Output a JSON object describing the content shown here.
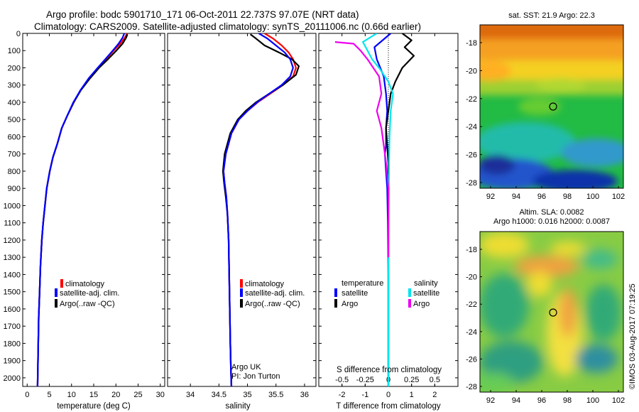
{
  "header": {
    "line1": "Argo profile: bodc 5901710_171 06-Oct-2011 22.737S 97.07E (NRT data)",
    "line2": "Climatology: CARS2009. Satellite-adjusted climatology: synTS_20111006.nc (0.66d earlier)"
  },
  "colors": {
    "climatology": "#ff0000",
    "satellite_adj": "#0000ff",
    "argo": "#000000",
    "salinity_satellite": "#00e5ee",
    "salinity_argo": "#ee00ee"
  },
  "chart_data": [
    {
      "id": "temperature",
      "type": "line",
      "xlabel": "temperature (deg C)",
      "xlim": [
        -1,
        31
      ],
      "xticks": [
        0,
        5,
        10,
        15,
        20,
        25,
        30
      ],
      "ylim": [
        2050,
        0
      ],
      "yticks": [
        0,
        100,
        200,
        300,
        400,
        500,
        600,
        700,
        800,
        900,
        1000,
        1100,
        1200,
        1300,
        1400,
        1500,
        1600,
        1700,
        1800,
        1900,
        2000
      ],
      "legend": [
        "climatology",
        "satellite-adj. clim.",
        "Argo(..raw -QC)"
      ],
      "series": [
        {
          "name": "climatology",
          "color": "#ff0000",
          "x": [
            22.5,
            22.0,
            21.0,
            19.5,
            17.8,
            16.0,
            14.0,
            12.0,
            10.5,
            9.0,
            7.8,
            6.8,
            5.8,
            5.1,
            4.4,
            4.0,
            3.6,
            3.3,
            3.0,
            2.8,
            2.6,
            2.5,
            2.4,
            2.35
          ],
          "y": [
            0,
            25,
            60,
            100,
            150,
            200,
            260,
            330,
            400,
            480,
            550,
            640,
            720,
            800,
            900,
            1000,
            1100,
            1200,
            1350,
            1500,
            1650,
            1800,
            1950,
            2050
          ]
        },
        {
          "name": "Argo(..raw -QC)",
          "color": "#000000",
          "x": [
            22.6,
            22.3,
            21.5,
            20.1,
            18.2,
            16.2,
            14.2,
            12.1,
            10.5,
            9.0,
            7.8,
            6.8,
            5.8,
            5.1,
            4.4,
            4.0,
            3.6,
            3.3,
            3.0,
            2.8,
            2.6,
            2.5,
            2.4,
            2.35
          ],
          "y": [
            5,
            25,
            60,
            100,
            150,
            200,
            260,
            330,
            400,
            480,
            550,
            640,
            720,
            800,
            900,
            1000,
            1100,
            1200,
            1350,
            1500,
            1650,
            1800,
            1950,
            2050
          ]
        },
        {
          "name": "satellite-adj. clim.",
          "color": "#0000ff",
          "x": [
            21.9,
            21.5,
            20.6,
            19.3,
            17.6,
            15.9,
            13.9,
            12.0,
            10.4,
            9.0,
            7.8,
            6.8,
            5.8,
            5.1,
            4.4,
            4.0,
            3.6,
            3.3,
            3.0,
            2.8,
            2.6,
            2.5,
            2.4,
            2.35
          ],
          "y": [
            0,
            25,
            60,
            100,
            150,
            200,
            260,
            330,
            400,
            480,
            550,
            640,
            720,
            800,
            900,
            1000,
            1100,
            1200,
            1350,
            1500,
            1650,
            1800,
            1950,
            2050
          ]
        }
      ]
    },
    {
      "id": "salinity",
      "type": "line",
      "xlabel": "salinity",
      "xlim": [
        33.6,
        36.2
      ],
      "xticks": [
        34,
        34.5,
        35,
        35.5,
        36
      ],
      "xticklabels": [
        "34",
        "34.5",
        "35",
        "35.5",
        "36"
      ],
      "ylim": [
        2050,
        0
      ],
      "legend": [
        "climatology",
        "satellite-adj. clim.",
        "Argo(..raw -QC)"
      ],
      "annotation": [
        "Argo UK",
        "PI: Jon Turton"
      ],
      "series": [
        {
          "name": "climatology",
          "color": "#ff0000",
          "x": [
            35.3,
            35.45,
            35.6,
            35.72,
            35.8,
            35.85,
            35.8,
            35.62,
            35.4,
            35.18,
            35.0,
            34.85,
            34.72,
            34.62,
            34.58,
            34.6,
            34.63,
            34.65,
            34.67,
            34.68,
            34.69,
            34.7,
            34.71,
            34.72
          ],
          "y": [
            0,
            30,
            70,
            110,
            150,
            200,
            250,
            300,
            350,
            400,
            450,
            500,
            580,
            700,
            800,
            870,
            950,
            1050,
            1200,
            1400,
            1600,
            1800,
            1950,
            2050
          ]
        },
        {
          "name": "Argo(..raw -QC)",
          "color": "#000000",
          "x": [
            35.05,
            35.15,
            35.3,
            35.55,
            35.78,
            35.9,
            35.85,
            35.62,
            35.38,
            35.15,
            34.97,
            34.83,
            34.7,
            34.6,
            34.57,
            34.59,
            34.62,
            34.65,
            34.67,
            34.68,
            34.69,
            34.7,
            34.71,
            34.72
          ],
          "y": [
            5,
            30,
            70,
            110,
            150,
            190,
            240,
            300,
            350,
            400,
            450,
            500,
            580,
            700,
            800,
            870,
            950,
            1050,
            1200,
            1400,
            1600,
            1800,
            1950,
            2050
          ]
        },
        {
          "name": "satellite-adj. clim.",
          "color": "#0000ff",
          "x": [
            35.2,
            35.35,
            35.5,
            35.65,
            35.75,
            35.8,
            35.75,
            35.6,
            35.38,
            35.17,
            35.0,
            34.85,
            34.72,
            34.62,
            34.58,
            34.6,
            34.63,
            34.65,
            34.67,
            34.68,
            34.69,
            34.7,
            34.71,
            34.72
          ],
          "y": [
            0,
            30,
            70,
            110,
            150,
            200,
            250,
            300,
            350,
            400,
            450,
            500,
            580,
            700,
            800,
            870,
            950,
            1050,
            1200,
            1400,
            1600,
            1800,
            1950,
            2050
          ]
        }
      ]
    },
    {
      "id": "difference",
      "type": "line",
      "xlabel": "T difference from climatology",
      "xlabel_top": "S difference from climatology",
      "xlim": [
        -3,
        3
      ],
      "xticks": [
        -2,
        -1,
        0,
        1,
        2
      ],
      "top_xlim": [
        -0.75,
        0.75
      ],
      "top_xticks": [
        -0.5,
        -0.25,
        0,
        0.25,
        0.5
      ],
      "top_xticklabels": [
        "-0.5",
        "-0.25",
        "0",
        "0.25",
        "0.5"
      ],
      "ylim": [
        2050,
        0
      ],
      "legend_title_t": "temperature",
      "legend_title_s": "salinity",
      "legend_t": [
        "satellite",
        "Argo"
      ],
      "legend_s": [
        "satellite",
        "Argo"
      ],
      "series": [
        {
          "name": "temperature satellite",
          "color": "#0000ff",
          "x": [
            0.1,
            -0.6,
            -0.5,
            -0.2,
            -0.1,
            -0.05,
            -0.1,
            -0.1,
            -0.15,
            -0.1,
            -0.05,
            -0.02,
            0,
            0,
            0
          ],
          "y": [
            0,
            80,
            150,
            250,
            350,
            450,
            550,
            650,
            700,
            800,
            900,
            1100,
            1400,
            1700,
            2050
          ]
        },
        {
          "name": "temperature Argo",
          "color": "#000000",
          "x": [
            0.6,
            1.0,
            0.7,
            1.1,
            0.6,
            0.3,
            0.1,
            0,
            -0.1,
            -0.05,
            0,
            0,
            0,
            0,
            0
          ],
          "y": [
            0,
            40,
            80,
            130,
            200,
            280,
            350,
            450,
            550,
            650,
            750,
            900,
            1200,
            1600,
            2050
          ]
        },
        {
          "name": "salinity satellite",
          "color": "#00e5ee",
          "x": [
            -0.5,
            -1.1,
            -0.9,
            -0.7,
            -0.4,
            0,
            0.2,
            0.1,
            0.05,
            0.03,
            0.02,
            0.01,
            0,
            0,
            0
          ],
          "y": [
            0,
            50,
            100,
            150,
            200,
            280,
            350,
            450,
            600,
            750,
            900,
            1100,
            1400,
            1700,
            2050
          ]
        },
        {
          "name": "salinity Argo",
          "color": "#ee00ee",
          "x": [
            -2.3,
            -1.5,
            -1.2,
            -0.9,
            -0.4,
            -0.3,
            -0.5,
            -0.3,
            -0.2,
            -0.1,
            0,
            0,
            0
          ],
          "y": [
            50,
            60,
            100,
            150,
            250,
            350,
            450,
            550,
            650,
            750,
            900,
            1100,
            1300
          ]
        }
      ]
    }
  ],
  "maps": {
    "sst": {
      "title": "sat. SST: 21.9 Argo: 22.3",
      "xticks": [
        "92",
        "94",
        "96",
        "98",
        "100",
        "102"
      ],
      "yticks": [
        "-18",
        "-20",
        "-22",
        "-24",
        "-26",
        "-28"
      ]
    },
    "sla": {
      "title_line1": "Altim. SLA: 0.0082",
      "title_line2": "Argo h1000: 0.016 h2000: 0.0087",
      "xticks": [
        "92",
        "94",
        "96",
        "98",
        "100",
        "102"
      ],
      "yticks": [
        "-18",
        "-20",
        "-22",
        "-24",
        "-26",
        "-28"
      ]
    },
    "credit": "©IMOS 03-Aug-2017 07:19:25"
  }
}
